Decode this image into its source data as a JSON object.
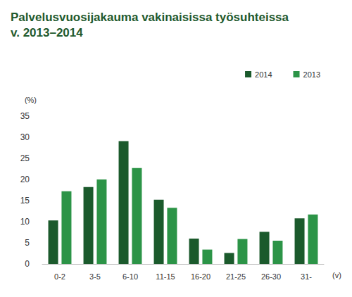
{
  "chart_data": {
    "type": "bar",
    "title": "Palvelusvuosijakauma vakinaisissa työsuhteissa\nv. 2013–2014",
    "y_label": "(%)",
    "x_label": "(v)",
    "categories": [
      "0-2",
      "3-5",
      "6-10",
      "11-15",
      "16-20",
      "21-25",
      "26-30",
      "31-"
    ],
    "series": [
      {
        "name": "2014",
        "color": "#1b5a2c",
        "values": [
          10.3,
          18.2,
          29.1,
          15.2,
          6.0,
          2.6,
          7.6,
          10.8
        ]
      },
      {
        "name": "2013",
        "color": "#2c9447",
        "values": [
          17.2,
          20.0,
          22.7,
          13.3,
          3.4,
          5.9,
          5.5,
          11.7
        ]
      }
    ],
    "ylim": [
      0,
      35
    ],
    "yticks": [
      0,
      5,
      10,
      15,
      20,
      25,
      30,
      35
    ],
    "grid": false,
    "legend": "top-right"
  }
}
